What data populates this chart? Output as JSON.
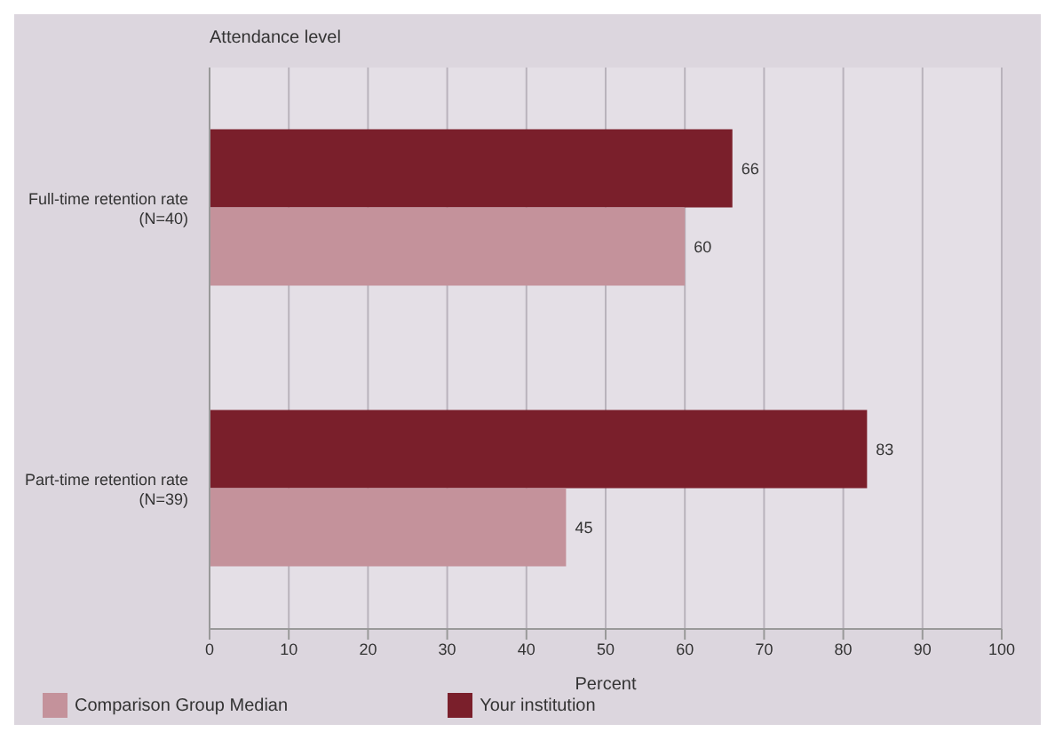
{
  "chart_data": {
    "type": "bar",
    "orientation": "horizontal",
    "categories": [
      "Full-time retention rate (N=40)",
      "Part-time retention rate (N=39)"
    ],
    "series": [
      {
        "name": "Your institution",
        "color": "#7a1f2b",
        "values": [
          66,
          83
        ]
      },
      {
        "name": "Comparison Group Median",
        "color": "#c4929b",
        "values": [
          60,
          45
        ]
      }
    ],
    "xlabel": "Percent",
    "ylabel": "Attendance level",
    "xlim": [
      0,
      100
    ],
    "xticks": [
      0,
      10,
      20,
      30,
      40,
      50,
      60,
      70,
      80,
      90,
      100
    ],
    "grid": "x",
    "legend": "bottom left",
    "data_labels": true
  }
}
